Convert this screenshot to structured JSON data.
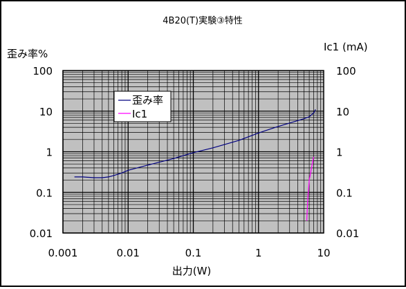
{
  "chart_data": {
    "type": "line",
    "title": "4B20(T)実験③特性",
    "xlabel": "出力(W)",
    "ylabel_left": "歪み率%",
    "ylabel_right": "Ic1 (mA)",
    "x_scale": "log",
    "y_scale": "log",
    "xlim": [
      0.001,
      10
    ],
    "ylim_left": [
      0.01,
      100
    ],
    "ylim_right": [
      0.01,
      100
    ],
    "grid": true,
    "legend_position": "upper-left",
    "x_ticks": [
      "0.001",
      "0.01",
      "0.1",
      "1",
      "10"
    ],
    "y_ticks_left": [
      "100",
      "10",
      "1",
      "0.1",
      "0.01"
    ],
    "y_ticks_right": [
      "100",
      "10",
      "1",
      "0.1",
      "0.01"
    ],
    "plot_background": "#c0c0c0",
    "series": [
      {
        "name": "歪み率",
        "axis": "left",
        "color": "#000080",
        "points": [
          [
            0.0015,
            0.24
          ],
          [
            0.002,
            0.24
          ],
          [
            0.003,
            0.23
          ],
          [
            0.004,
            0.23
          ],
          [
            0.005,
            0.24
          ],
          [
            0.006,
            0.26
          ],
          [
            0.008,
            0.3
          ],
          [
            0.01,
            0.35
          ],
          [
            0.02,
            0.47
          ],
          [
            0.05,
            0.68
          ],
          [
            0.1,
            0.95
          ],
          [
            0.2,
            1.25
          ],
          [
            0.5,
            1.9
          ],
          [
            1,
            2.9
          ],
          [
            2,
            4.2
          ],
          [
            5,
            6.5
          ],
          [
            6,
            7.3
          ],
          [
            7,
            9.0
          ],
          [
            7.5,
            11.0
          ]
        ]
      },
      {
        "name": "Ic1",
        "axis": "right",
        "color": "#ff00ff",
        "points": [
          [
            5.5,
            0.02
          ],
          [
            5.7,
            0.07
          ],
          [
            6.0,
            0.2
          ],
          [
            6.5,
            0.4
          ],
          [
            7.0,
            0.75
          ]
        ]
      }
    ]
  }
}
